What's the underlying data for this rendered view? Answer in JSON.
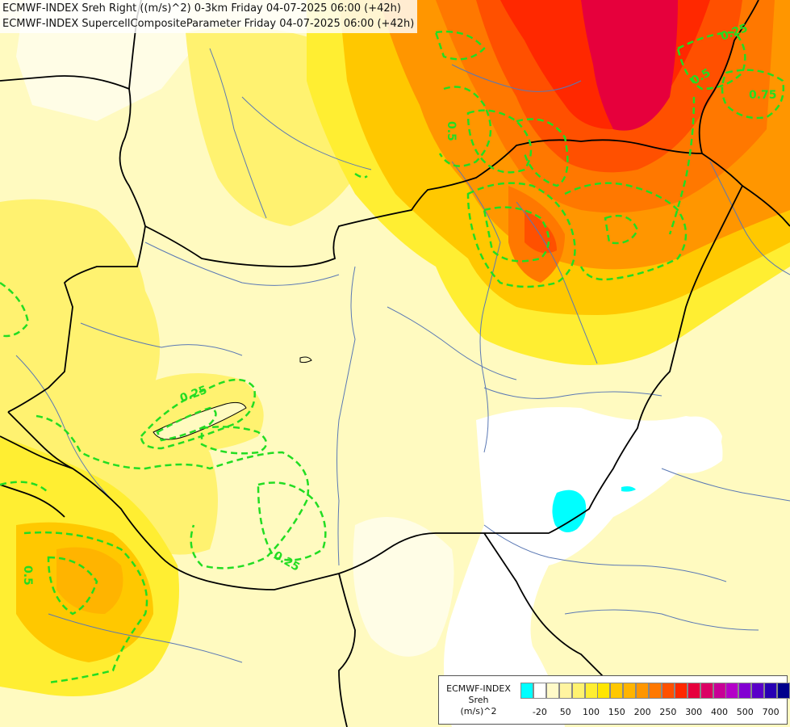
{
  "header": {
    "line1": "ECMWF-INDEX Sreh Right ((m/s)^2) 0-3km Friday 04-07-2025 06:00 (+42h)",
    "line2": "ECMWF-INDEX SupercellCompositeParameter Friday 04-07-2025 06:00 (+42h)"
  },
  "colors": {
    "background_field": "#fffac0",
    "contour": "#22dd22",
    "borders": "#000000",
    "rivers": "#5a78b4"
  },
  "contour_labels": [
    "0.25",
    "0.25",
    "0.25",
    "0.5",
    "0.5",
    "0.5",
    "0.75"
  ],
  "legend": {
    "line1": "ECMWF-INDEX",
    "line2": "Sreh",
    "line3": "(m/s)^2",
    "swatches": [
      "#00ffff",
      "#ffffff",
      "#fffac8",
      "#fff4a0",
      "#fff270",
      "#ffee32",
      "#ffe600",
      "#ffc800",
      "#ffb400",
      "#ff9600",
      "#ff7800",
      "#ff5000",
      "#ff2800",
      "#e6003c",
      "#dc0064",
      "#c80096",
      "#b400c8",
      "#8200d2",
      "#5a00c8",
      "#2800b4",
      "#00008c"
    ],
    "ticks": [
      "-20",
      "50",
      "100",
      "150",
      "200",
      "250",
      "300",
      "400",
      "500",
      "700"
    ]
  }
}
